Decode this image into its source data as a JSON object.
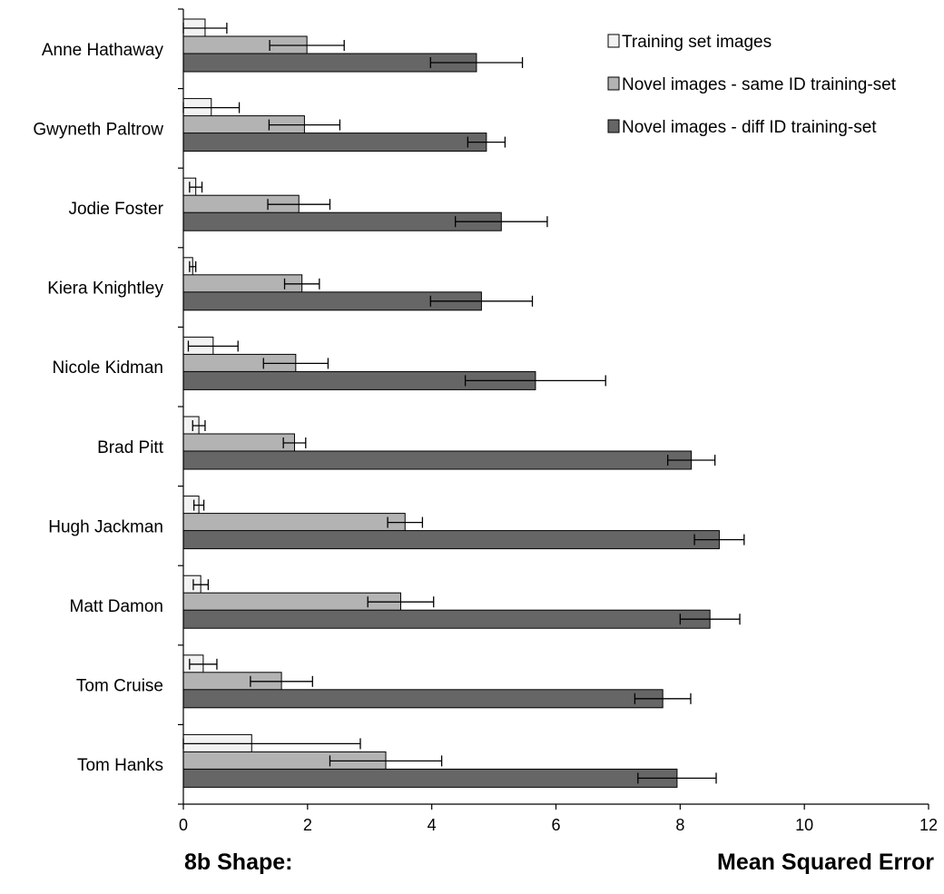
{
  "chart_data": {
    "type": "bar",
    "orientation": "horizontal",
    "title": "",
    "caption_left": "8b Shape:",
    "xlabel": "Mean Squared Error",
    "ylabel": "",
    "xlim": [
      0,
      12
    ],
    "x_ticks": [
      "0",
      "2",
      "4",
      "6",
      "8",
      "10",
      "12"
    ],
    "grid": false,
    "legend_position": "top-right",
    "categories": [
      "Anne Hathaway",
      "Gwyneth Paltrow",
      "Jodie Foster",
      "Kiera Knightley",
      "Nicole Kidman",
      "Brad Pitt",
      "Hugh Jackman",
      "Matt Damon",
      "Tom Cruise",
      "Tom Hanks"
    ],
    "series": [
      {
        "name": "Training set images",
        "color": "#f2f2f2",
        "values": [
          0.35,
          0.45,
          0.2,
          0.15,
          0.48,
          0.25,
          0.25,
          0.28,
          0.32,
          1.1
        ],
        "errors": [
          0.35,
          0.45,
          0.1,
          0.05,
          0.4,
          0.1,
          0.08,
          0.12,
          0.22,
          1.75
        ]
      },
      {
        "name": "Novel images - same ID training-set",
        "color": "#b3b3b3",
        "values": [
          1.99,
          1.95,
          1.86,
          1.91,
          1.81,
          1.79,
          3.57,
          3.5,
          1.58,
          3.26
        ],
        "errors": [
          0.6,
          0.57,
          0.5,
          0.28,
          0.52,
          0.18,
          0.28,
          0.53,
          0.5,
          0.9
        ]
      },
      {
        "name": "Novel images - diff ID training-set",
        "color": "#666666",
        "values": [
          4.72,
          4.88,
          5.12,
          4.8,
          5.67,
          8.18,
          8.63,
          8.48,
          7.72,
          7.95
        ],
        "errors": [
          0.74,
          0.3,
          0.74,
          0.82,
          1.13,
          0.38,
          0.4,
          0.48,
          0.45,
          0.63
        ]
      }
    ]
  }
}
